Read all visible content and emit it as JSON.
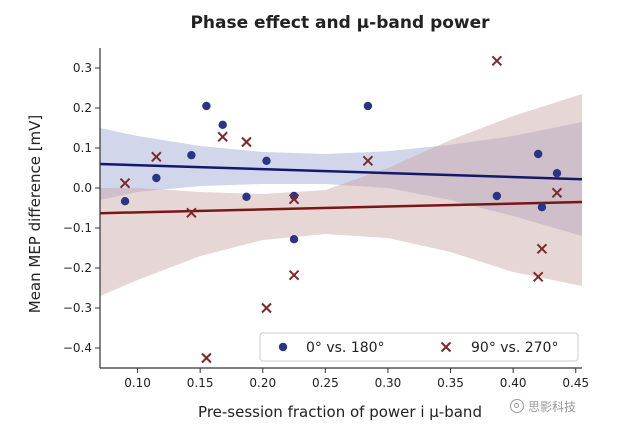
{
  "chart_data": {
    "type": "scatter",
    "title": "Phase effect and μ-band power",
    "xlabel": "Pre-session fraction of power i μ-band",
    "ylabel": "Mean MEP difference [mV]",
    "xlim": [
      0.07,
      0.455
    ],
    "ylim": [
      -0.45,
      0.35
    ],
    "xticks": [
      "0.10",
      "0.15",
      "0.20",
      "0.25",
      "0.30",
      "0.35",
      "0.40",
      "0.45"
    ],
    "xtick_values": [
      0.1,
      0.15,
      0.2,
      0.25,
      0.3,
      0.35,
      0.4,
      0.45
    ],
    "yticks": [
      "0.3",
      "0.2",
      "0.1",
      "0.0",
      "−0.1",
      "−0.2",
      "−0.3",
      "−0.4"
    ],
    "ytick_values": [
      0.3,
      0.2,
      0.1,
      0.0,
      -0.1,
      -0.2,
      -0.3,
      -0.4
    ],
    "legend_position": "lower-right",
    "series": [
      {
        "name": "0° vs. 180°",
        "marker": "circle",
        "color": "#2b3583",
        "line_color": "#14186b",
        "band_color": "#9aa3d3",
        "fit": {
          "x": [
            0.07,
            0.455
          ],
          "y": [
            0.06,
            0.022
          ]
        },
        "band": {
          "x": [
            0.07,
            0.1,
            0.15,
            0.2,
            0.25,
            0.3,
            0.35,
            0.4,
            0.455
          ],
          "upper": [
            0.15,
            0.13,
            0.105,
            0.09,
            0.085,
            0.092,
            0.108,
            0.13,
            0.165
          ],
          "lower": [
            -0.03,
            -0.01,
            0.005,
            0.01,
            0.01,
            0.0,
            -0.03,
            -0.07,
            -0.12
          ]
        },
        "points": [
          {
            "x": 0.09,
            "y": -0.033
          },
          {
            "x": 0.115,
            "y": 0.025
          },
          {
            "x": 0.143,
            "y": 0.082
          },
          {
            "x": 0.155,
            "y": 0.205
          },
          {
            "x": 0.168,
            "y": 0.158
          },
          {
            "x": 0.187,
            "y": -0.022
          },
          {
            "x": 0.203,
            "y": 0.068
          },
          {
            "x": 0.225,
            "y": -0.02
          },
          {
            "x": 0.225,
            "y": -0.128
          },
          {
            "x": 0.284,
            "y": 0.205
          },
          {
            "x": 0.387,
            "y": -0.02
          },
          {
            "x": 0.42,
            "y": 0.085
          },
          {
            "x": 0.423,
            "y": -0.048
          },
          {
            "x": 0.435,
            "y": 0.037
          }
        ]
      },
      {
        "name": "90° vs. 270°",
        "marker": "x",
        "color": "#7a2a2a",
        "line_color": "#7a1616",
        "band_color": "#c9a3a3",
        "fit": {
          "x": [
            0.07,
            0.455
          ],
          "y": [
            -0.063,
            -0.035
          ]
        },
        "band": {
          "x": [
            0.07,
            0.1,
            0.15,
            0.2,
            0.25,
            0.3,
            0.35,
            0.4,
            0.455
          ],
          "upper": [
            0.0,
            0.0,
            -0.01,
            -0.015,
            -0.005,
            0.05,
            0.12,
            0.18,
            0.235
          ],
          "lower": [
            -0.27,
            -0.23,
            -0.17,
            -0.13,
            -0.115,
            -0.125,
            -0.16,
            -0.21,
            -0.245
          ]
        },
        "points": [
          {
            "x": 0.09,
            "y": 0.012
          },
          {
            "x": 0.115,
            "y": 0.078
          },
          {
            "x": 0.143,
            "y": -0.062
          },
          {
            "x": 0.155,
            "y": -0.425
          },
          {
            "x": 0.168,
            "y": 0.128
          },
          {
            "x": 0.187,
            "y": 0.115
          },
          {
            "x": 0.203,
            "y": -0.3
          },
          {
            "x": 0.225,
            "y": -0.028
          },
          {
            "x": 0.225,
            "y": -0.218
          },
          {
            "x": 0.284,
            "y": 0.068
          },
          {
            "x": 0.387,
            "y": 0.318
          },
          {
            "x": 0.42,
            "y": -0.222
          },
          {
            "x": 0.423,
            "y": -0.152
          },
          {
            "x": 0.435,
            "y": -0.012
          }
        ]
      }
    ]
  },
  "watermark": {
    "text": "思影科技"
  }
}
